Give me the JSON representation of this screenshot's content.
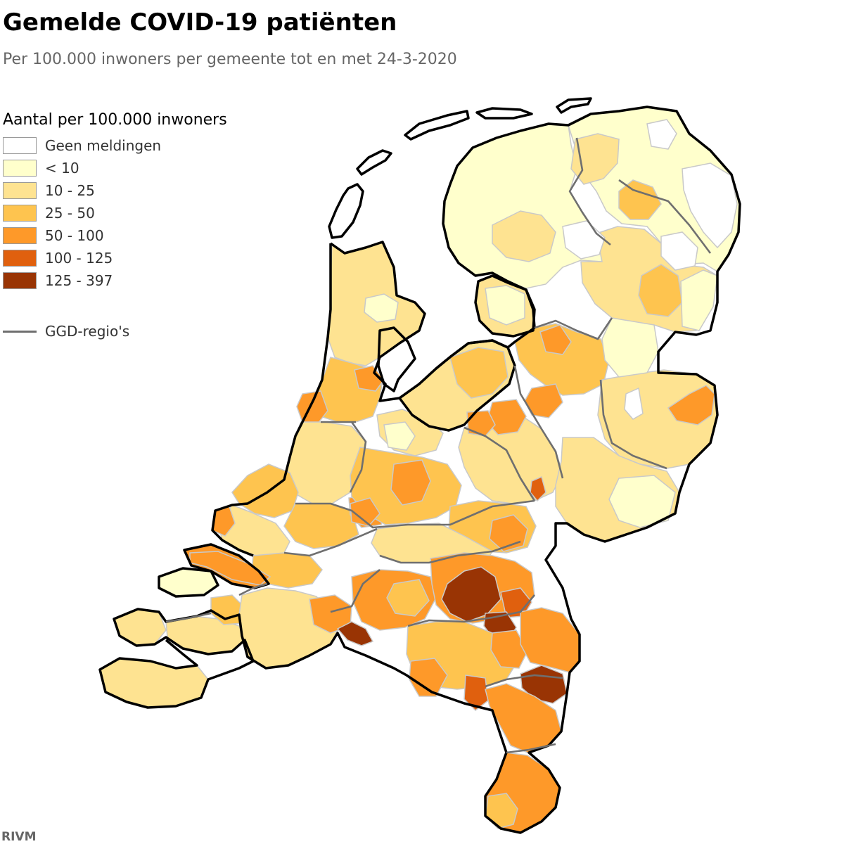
{
  "title": "Gemelde COVID-19 patiënten",
  "subtitle": "Per 100.000 inwoners per gemeente tot en met 24-3-2020",
  "legend": {
    "title": "Aantal per 100.000 inwoners",
    "items": [
      {
        "label": "Geen meldingen",
        "color": "#ffffff"
      },
      {
        "label": "< 10",
        "color": "#ffffcc"
      },
      {
        "label": "10 - 25",
        "color": "#fee391"
      },
      {
        "label": "25 - 50",
        "color": "#fec44f"
      },
      {
        "label": "50 - 100",
        "color": "#fe9929"
      },
      {
        "label": "100 - 125",
        "color": "#e0600e"
      },
      {
        "label": "125 - 397",
        "color": "#993404"
      }
    ],
    "ggd_label": "GGD-regio's",
    "ggd_color": "#6f6f6f"
  },
  "source": "RIVM"
}
